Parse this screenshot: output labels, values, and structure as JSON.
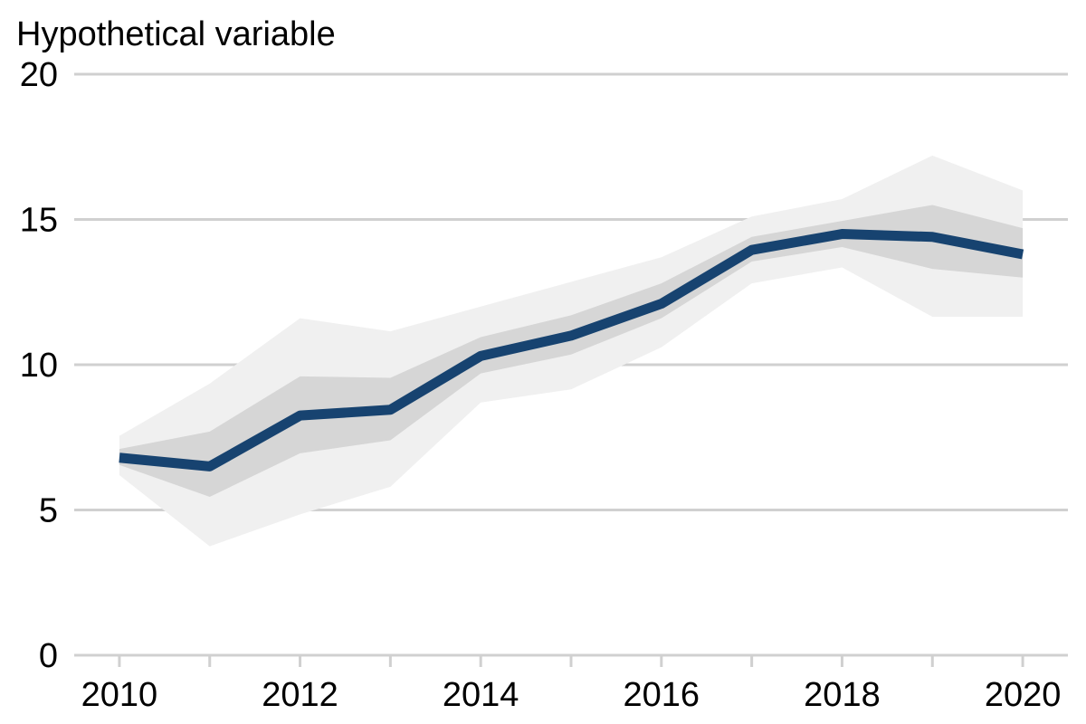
{
  "chart_data": {
    "type": "line",
    "title": "",
    "ylabel": "Hypothetical variable",
    "xlabel": "",
    "x": [
      2010,
      2011,
      2012,
      2013,
      2014,
      2015,
      2016,
      2017,
      2018,
      2019,
      2020
    ],
    "xlim": [
      2009.5,
      2020.5
    ],
    "ylim": [
      0,
      20
    ],
    "yticks": [
      0,
      5,
      10,
      15,
      20
    ],
    "xticks_labeled": [
      2010,
      2012,
      2014,
      2016,
      2018,
      2020
    ],
    "xticks_all": [
      2010,
      2011,
      2012,
      2013,
      2014,
      2015,
      2016,
      2017,
      2018,
      2019,
      2020
    ],
    "grid": "horizontal",
    "series": [
      {
        "role": "central",
        "values": [
          6.8,
          6.5,
          8.25,
          8.45,
          10.3,
          11.0,
          12.1,
          13.95,
          14.5,
          14.4,
          13.8
        ]
      }
    ],
    "bands": [
      {
        "role": "outer",
        "lower": [
          6.2,
          3.75,
          4.85,
          5.8,
          8.7,
          9.15,
          10.6,
          12.8,
          13.35,
          11.65,
          11.65
        ],
        "upper": [
          7.55,
          9.35,
          11.6,
          11.15,
          12.0,
          12.85,
          13.7,
          15.1,
          15.7,
          17.2,
          16.0
        ]
      },
      {
        "role": "inner",
        "lower": [
          6.55,
          5.45,
          6.95,
          7.4,
          9.7,
          10.35,
          11.6,
          13.55,
          14.05,
          13.3,
          13.0
        ],
        "upper": [
          7.1,
          7.7,
          9.6,
          9.55,
          10.95,
          11.7,
          12.8,
          14.4,
          14.95,
          15.5,
          14.7
        ]
      }
    ],
    "colors": {
      "line": "#174370",
      "outer_band": "#f0f0f0",
      "inner_band": "#d6d6d6",
      "grid": "#d0d0d0",
      "axis": "#d0d0d0",
      "text": "#000000"
    }
  }
}
